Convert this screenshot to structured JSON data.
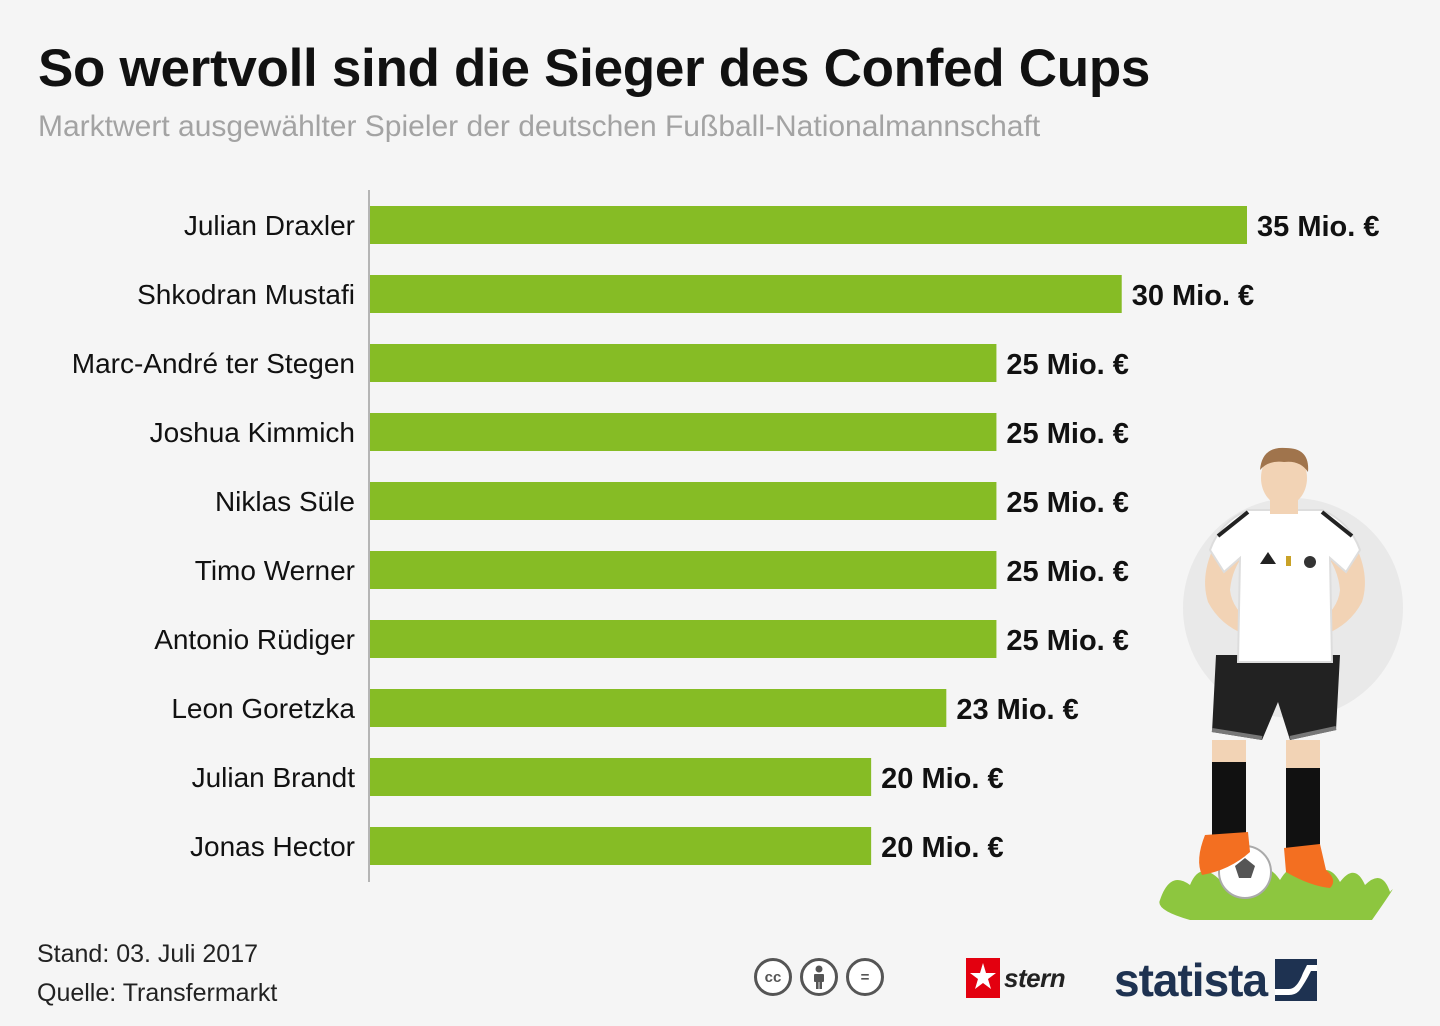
{
  "header": {
    "title": "So wertvoll sind die Sieger des Confed Cups",
    "subtitle": "Marktwert ausgewählter Spieler der deutschen Fußball-Nationalmannschaft"
  },
  "chart_data": {
    "type": "bar",
    "orientation": "horizontal",
    "categories": [
      "Julian Draxler",
      "Shkodran Mustafi",
      "Marc-André ter Stegen",
      "Joshua Kimmich",
      "Niklas Süle",
      "Timo Werner",
      "Antonio Rüdiger",
      "Leon Goretzka",
      "Julian Brandt",
      "Jonas Hector"
    ],
    "values": [
      35,
      30,
      25,
      25,
      25,
      25,
      25,
      23,
      20,
      20
    ],
    "value_labels": [
      "35 Mio. €",
      "30 Mio. €",
      "25 Mio. €",
      "25 Mio. €",
      "25 Mio. €",
      "25 Mio. €",
      "25 Mio. €",
      "23 Mio. €",
      "20 Mio. €",
      "20 Mio. €"
    ],
    "unit": "Mio. €",
    "xlim": [
      0,
      35
    ],
    "grid": false,
    "legend": "none",
    "bar_color": "#86bc25"
  },
  "footer": {
    "stand": "Stand: 03. Juli 2017",
    "quelle": "Quelle: Transfermarkt"
  },
  "license": {
    "icons": [
      "cc-icon",
      "by-icon",
      "nd-icon"
    ],
    "cc_text": "cc",
    "nd_text": "="
  },
  "brands": {
    "stern": "stern",
    "statista": "statista"
  },
  "colors": {
    "bar": "#86bc25",
    "title": "#111111",
    "subtitle": "#a3a3a3",
    "statista": "#1e3251",
    "stern_red": "#e3000f"
  }
}
